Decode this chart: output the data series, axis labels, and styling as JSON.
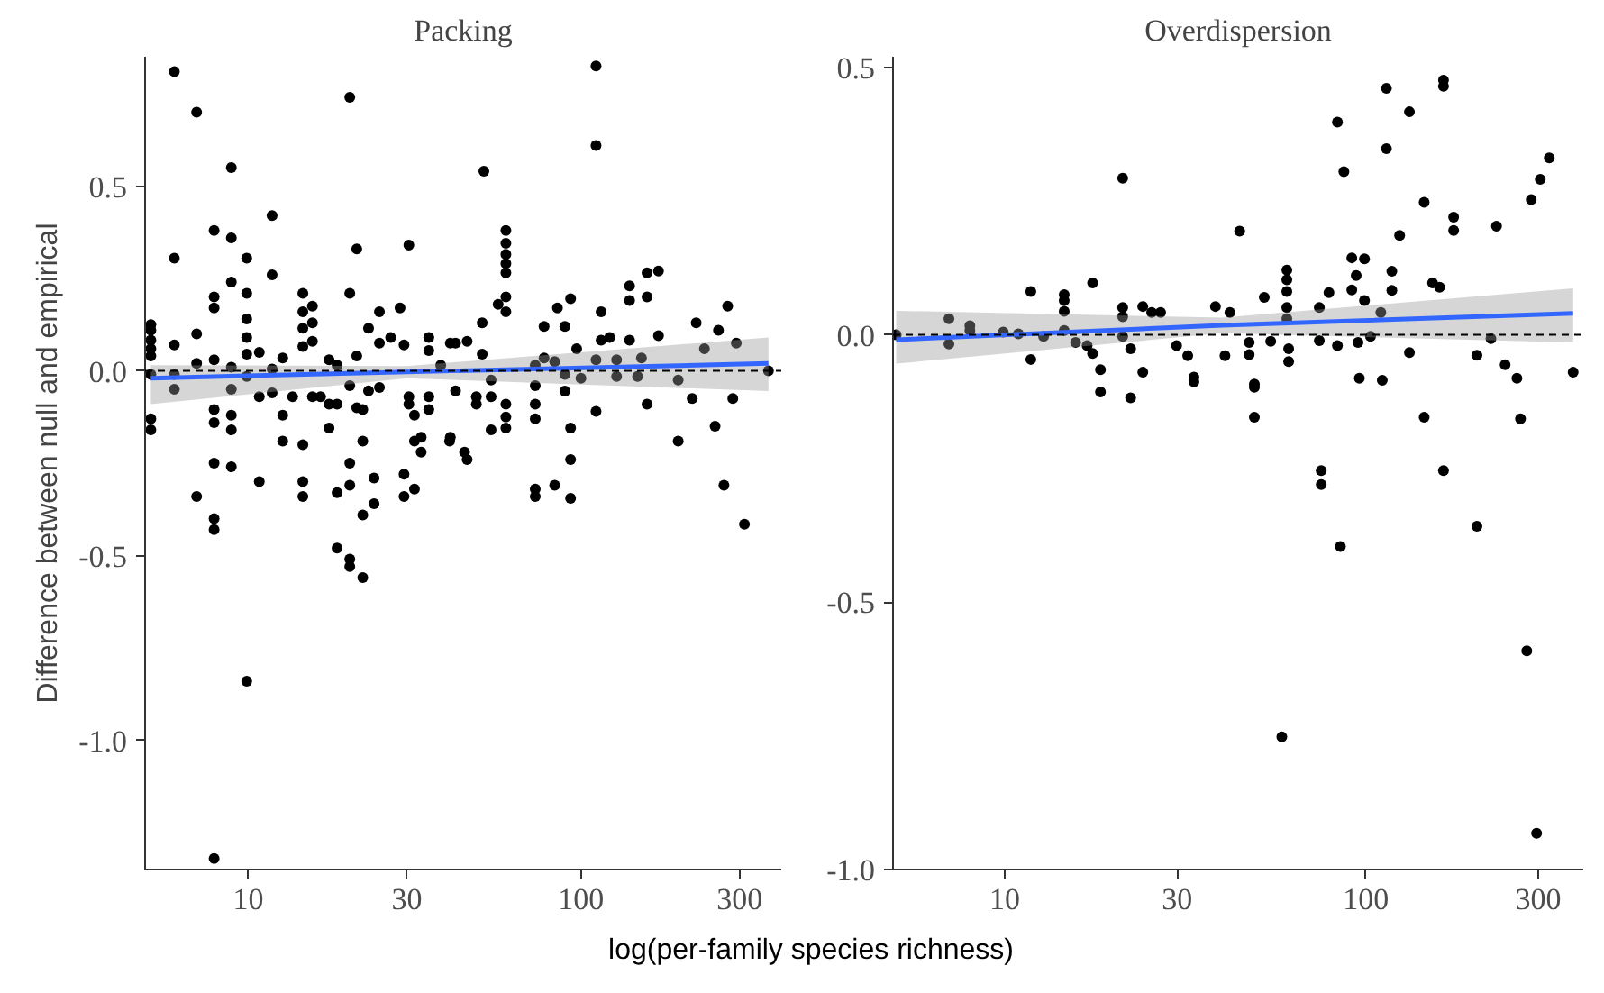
{
  "chart_data": [
    {
      "type": "scatter",
      "title": "Packing",
      "xlabel": "log(per-family species richness)",
      "ylabel": "Difference between null and empirical",
      "log": "x",
      "xlim": [
        4.9,
        400
      ],
      "xticks": [
        10,
        30,
        100,
        300
      ],
      "ylim": [
        -1.35,
        0.85
      ],
      "yticks": [
        {
          "value": 0.5,
          "label": "0.5"
        },
        {
          "value": 0,
          "label": "0.0"
        },
        {
          "value": -0.5,
          "label": "-0.5"
        },
        {
          "value": -1,
          "label": "-1.0"
        }
      ],
      "ref_lines": [
        {
          "axis": "y",
          "value": 0,
          "line_style": "dashed",
          "color": "#000000"
        }
      ],
      "series": [
        {
          "marker": "circle",
          "color": "#000000",
          "x": [
            5.1,
            5.1,
            5.1,
            5.1,
            5.1,
            5.1,
            5.1,
            5.1,
            6.0,
            6.0,
            6.0,
            6.0,
            6.0,
            7.0,
            7.0,
            7.0,
            7.0,
            7.9,
            7.9,
            7.9,
            7.9,
            7.9,
            7.9,
            7.9,
            7.9,
            7.9,
            7.9,
            8.9,
            8.9,
            8.9,
            8.9,
            8.9,
            8.9,
            8.9,
            8.9,
            9.9,
            9.9,
            9.9,
            9.9,
            9.9,
            9.9,
            9.9,
            10.8,
            10.8,
            10.8,
            11.8,
            11.8,
            11.8,
            11.8,
            12.7,
            12.7,
            12.7,
            13.6,
            14.6,
            14.6,
            14.6,
            14.6,
            14.6,
            14.6,
            14.6,
            15.6,
            15.6,
            15.6,
            15.6,
            16.5,
            17.5,
            17.5,
            17.5,
            18.5,
            18.5,
            18.5,
            18.5,
            20.2,
            20.2,
            20.2,
            20.2,
            20.2,
            20.2,
            20.2,
            21.2,
            21.2,
            21.2,
            22.1,
            22.1,
            22.1,
            22.1,
            23.0,
            23.0,
            23.9,
            23.9,
            24.8,
            24.8,
            24.8,
            26.8,
            28.6,
            29.4,
            29.4,
            29.4,
            30.4,
            30.4,
            30.4,
            31.6,
            31.6,
            31.6,
            33.1,
            33.1,
            34.9,
            34.9,
            34.9,
            34.9,
            37.9,
            40.5,
            40.5,
            40.3,
            42.0,
            42.0,
            45.5,
            44.7,
            45.5,
            48.5,
            48.5,
            50.5,
            50.5,
            53.7,
            53.7,
            53.7,
            51.1,
            59.5,
            59.5,
            59.5,
            59.5,
            59.5,
            59.5,
            59.5,
            56.4,
            59.5,
            59.5,
            59.5,
            72.9,
            72.9,
            72.9,
            72.9,
            72.9,
            72.9,
            77.5,
            77.5,
            83.4,
            83.4,
            85.0,
            89.5,
            89.5,
            89.5,
            93.1,
            93.1,
            93.1,
            93.1,
            97.1,
            100,
            111,
            111,
            111,
            111,
            115,
            115,
            122,
            128,
            128,
            140,
            140,
            140,
            148,
            152,
            158,
            158,
            158,
            171,
            171,
            196,
            196,
            216,
            222,
            235,
            253,
            259,
            269,
            276,
            286,
            293,
            310,
            366
          ],
          "values": [
            0.125,
            0.11,
            0.083,
            0.06,
            0.04,
            -0.01,
            -0.13,
            -0.16,
            0.81,
            0.305,
            0.07,
            -0.01,
            -0.05,
            0.7,
            0.1,
            0.02,
            -0.34,
            0.38,
            0.2,
            0.17,
            0.03,
            -0.105,
            -0.14,
            -0.25,
            -0.4,
            -0.43,
            -1.32,
            0.55,
            0.36,
            0.24,
            0.01,
            -0.05,
            -0.12,
            -0.16,
            -0.26,
            0.305,
            0.21,
            0.14,
            0.09,
            0.045,
            -0.015,
            -0.84,
            0.05,
            -0.07,
            -0.3,
            0.42,
            0.26,
            0.005,
            -0.06,
            0.035,
            -0.12,
            -0.19,
            -0.07,
            0.21,
            0.16,
            0.115,
            0.066,
            -0.2,
            -0.3,
            -0.34,
            0.175,
            0.13,
            0.08,
            -0.07,
            -0.07,
            0.03,
            -0.09,
            -0.155,
            0.015,
            -0.09,
            -0.33,
            -0.48,
            0.74,
            0.21,
            -0.04,
            -0.25,
            -0.31,
            -0.51,
            -0.53,
            0.33,
            0.04,
            -0.1,
            -0.105,
            -0.19,
            -0.39,
            -0.56,
            0.115,
            -0.054,
            -0.29,
            -0.36,
            0.16,
            0.075,
            -0.045,
            0.09,
            0.17,
            0.07,
            -0.28,
            -0.34,
            0.34,
            -0.07,
            -0.09,
            -0.12,
            -0.19,
            -0.32,
            -0.18,
            -0.22,
            0.09,
            0.055,
            -0.07,
            -0.105,
            0.015,
            0.075,
            -0.18,
            -0.19,
            -0.054,
            0.075,
            0.08,
            -0.22,
            -0.24,
            -0.07,
            -0.09,
            0.13,
            0.045,
            -0.025,
            -0.07,
            -0.16,
            0.54,
            0.38,
            0.345,
            0.315,
            0.29,
            0.265,
            0.2,
            0.16,
            0.18,
            -0.09,
            -0.125,
            -0.155,
            0.015,
            -0.04,
            -0.09,
            -0.13,
            -0.32,
            -0.34,
            0.12,
            0.035,
            -0.31,
            0.025,
            0.17,
            0.12,
            -0.01,
            -0.055,
            0.195,
            -0.155,
            -0.24,
            -0.345,
            0.06,
            -0.02,
            0.825,
            0.61,
            -0.11,
            0.03,
            0.16,
            0.083,
            0.09,
            0.03,
            -0.015,
            0.23,
            0.19,
            0.083,
            -0.015,
            0.035,
            0.265,
            0.2,
            -0.09,
            0.27,
            0.095,
            -0.025,
            -0.19,
            -0.075,
            0.13,
            0.06,
            -0.15,
            0.11,
            -0.31,
            0.175,
            -0.075,
            0.075,
            -0.415,
            0.0
          ]
        },
        {
          "type": "line",
          "color": "#3366ff",
          "x": [
            5.1,
            30,
            366
          ],
          "values": [
            -0.02,
            -0.003,
            0.02
          ],
          "lower": [
            -0.09,
            -0.02,
            -0.055
          ],
          "upper": [
            0.015,
            0.013,
            0.09
          ]
        }
      ]
    },
    {
      "type": "scatter",
      "title": "Overdispersion",
      "log": "x",
      "xlim": [
        4.9,
        400
      ],
      "xticks": [
        10,
        30,
        100,
        300
      ],
      "ylim": [
        -1.0,
        0.52
      ],
      "yticks": [
        {
          "value": 0.5,
          "label": "0.5"
        },
        {
          "value": 0,
          "label": "0.0"
        },
        {
          "value": -0.5,
          "label": "-0.5"
        },
        {
          "value": -1,
          "label": "-1.0"
        }
      ],
      "ref_lines": [
        {
          "axis": "y",
          "value": 0,
          "line_style": "dashed",
          "color": "#000000"
        }
      ],
      "series": [
        {
          "marker": "circle",
          "color": "#000000",
          "x": [
            5.0,
            7.0,
            7.0,
            8.0,
            8.0,
            9.9,
            10.9,
            11.8,
            11.8,
            12.8,
            14.6,
            14.6,
            14.6,
            14.6,
            15.7,
            17.5,
            17.5,
            16.9,
            18.4,
            18.4,
            21.2,
            21.2,
            21.2,
            21.2,
            22.3,
            22.3,
            24.1,
            24.1,
            25.5,
            27.0,
            29.9,
            32.1,
            33.4,
            33.4,
            38.3,
            40.7,
            42.0,
            44.7,
            47.5,
            49.1,
            49.1,
            49.1,
            47.5,
            52.3,
            54.5,
            60.4,
            60.4,
            60.4,
            60.4,
            60.4,
            61.1,
            61.1,
            74.3,
            74.3,
            75.2,
            75.2,
            79.0,
            83.4,
            83.4,
            86.9,
            91.4,
            91.4,
            94.0,
            95.9,
            99.1,
            99.1,
            95.1,
            103,
            111,
            110,
            114,
            114,
            118,
            118,
            124,
            132,
            132,
            145,
            145,
            153,
            160,
            164,
            164,
            164,
            175,
            175,
            203,
            222,
            230,
            243,
            262,
            268,
            287,
            304,
            322,
            375,
            85.0,
            203,
            279,
            58.5,
            297
          ],
          "values": [
            0.0,
            0.03,
            -0.017,
            0.017,
            0.008,
            0.005,
            0.002,
            0.081,
            -0.046,
            -0.003,
            0.075,
            0.064,
            0.044,
            0.008,
            -0.014,
            0.097,
            -0.035,
            -0.02,
            -0.065,
            -0.107,
            0.293,
            0.051,
            0.034,
            -0.003,
            -0.118,
            -0.026,
            0.053,
            -0.07,
            0.042,
            0.042,
            -0.02,
            -0.039,
            -0.079,
            -0.088,
            0.053,
            -0.039,
            0.042,
            0.194,
            -0.037,
            -0.092,
            -0.098,
            -0.154,
            -0.014,
            0.07,
            -0.012,
            0.121,
            0.103,
            0.081,
            0.051,
            0.03,
            -0.026,
            -0.05,
            0.051,
            -0.011,
            -0.254,
            -0.28,
            0.079,
            0.398,
            -0.02,
            0.305,
            0.144,
            0.084,
            0.111,
            -0.081,
            0.142,
            0.064,
            -0.014,
            -0.003,
            -0.085,
            0.042,
            0.461,
            0.348,
            0.119,
            0.083,
            0.186,
            0.417,
            -0.033,
            0.248,
            -0.154,
            0.097,
            0.089,
            0.476,
            0.465,
            -0.254,
            0.22,
            0.195,
            -0.038,
            -0.007,
            0.203,
            -0.056,
            -0.081,
            -0.157,
            0.253,
            0.291,
            0.331,
            -0.07,
            -0.396,
            -0.358,
            -0.591,
            -0.752,
            -0.932
          ]
        },
        {
          "type": "line",
          "color": "#3366ff",
          "x": [
            5.0,
            40,
            375
          ],
          "values": [
            -0.009,
            0.018,
            0.04
          ],
          "lower": [
            -0.054,
            0.003,
            -0.014
          ],
          "upper": [
            0.045,
            0.032,
            0.087
          ]
        }
      ]
    }
  ]
}
